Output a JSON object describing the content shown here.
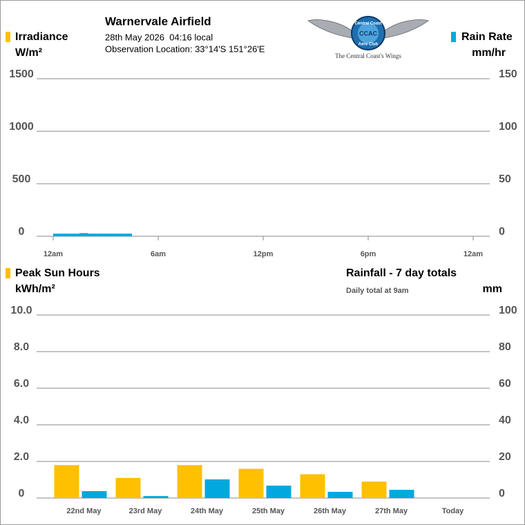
{
  "header": {
    "title": "Warnervale Airfield",
    "datetime": "28th May 2026  04:16 local",
    "location": "Observation Location: 33°14'S 151°26'E"
  },
  "logo": {
    "ring_top": "Central Coast",
    "ring_bottom": "Aero Club",
    "monogram": "CCAC",
    "caption": "The Central Coast's Wings"
  },
  "chart_data": [
    {
      "type": "bar",
      "yunit": "W/m²",
      "y2unit": "mm/hr",
      "x": [
        0,
        0.5,
        1,
        1.5,
        2,
        2.5,
        3,
        3.5,
        4
      ],
      "series": [
        {
          "name": "Irradiance",
          "color": "#ffc000",
          "values": [
            0,
            0,
            0,
            0,
            0,
            0,
            0,
            0,
            0
          ]
        },
        {
          "name": "Rain Rate",
          "color": "#00a8e0",
          "axis": "y2",
          "values": [
            2.5,
            2.5,
            2.5,
            3,
            2.5,
            2.5,
            2.5,
            2.5,
            2.5
          ]
        }
      ],
      "xlim": [
        0,
        24
      ],
      "xticks": [
        {
          "value": 0,
          "label": "12am"
        },
        {
          "value": 6,
          "label": "6am"
        },
        {
          "value": 12,
          "label": "12pm"
        },
        {
          "value": 18,
          "label": "6pm"
        },
        {
          "value": 24,
          "label": "12am"
        }
      ],
      "ylim": [
        0,
        1500
      ],
      "yticks": [
        0,
        500,
        1000,
        1500
      ],
      "y2lim": [
        0,
        150
      ],
      "y2ticks": [
        0,
        50,
        100,
        150
      ],
      "grid": true
    },
    {
      "type": "bar",
      "yunit": "kWh/m²",
      "y2unit": "mm",
      "subtitle": "Daily total at 9am",
      "categories": [
        "22nd May",
        "23rd May",
        "24th May",
        "25th May",
        "26th May",
        "27th May",
        "Today"
      ],
      "series": [
        {
          "name": "Peak Sun Hours",
          "color": "#ffc000",
          "values": [
            1.8,
            1.1,
            1.8,
            1.6,
            1.3,
            0.9,
            null
          ]
        },
        {
          "name": "Rainfall - 7 day totals",
          "color": "#00a8e0",
          "axis": "y2",
          "values": [
            3.8,
            1.1,
            10.2,
            6.8,
            3.4,
            4.5,
            null
          ]
        }
      ],
      "ylim": [
        0,
        10
      ],
      "yticks": [
        0,
        {
          "value": 2,
          "label": "2.0"
        },
        {
          "value": 4,
          "label": "4.0"
        },
        {
          "value": 6,
          "label": "6.0"
        },
        {
          "value": 8,
          "label": "8.0"
        },
        {
          "value": 10,
          "label": "10.0"
        }
      ],
      "y2lim": [
        0,
        100
      ],
      "y2ticks": [
        0,
        20,
        40,
        60,
        80,
        100
      ],
      "grid": true
    }
  ]
}
